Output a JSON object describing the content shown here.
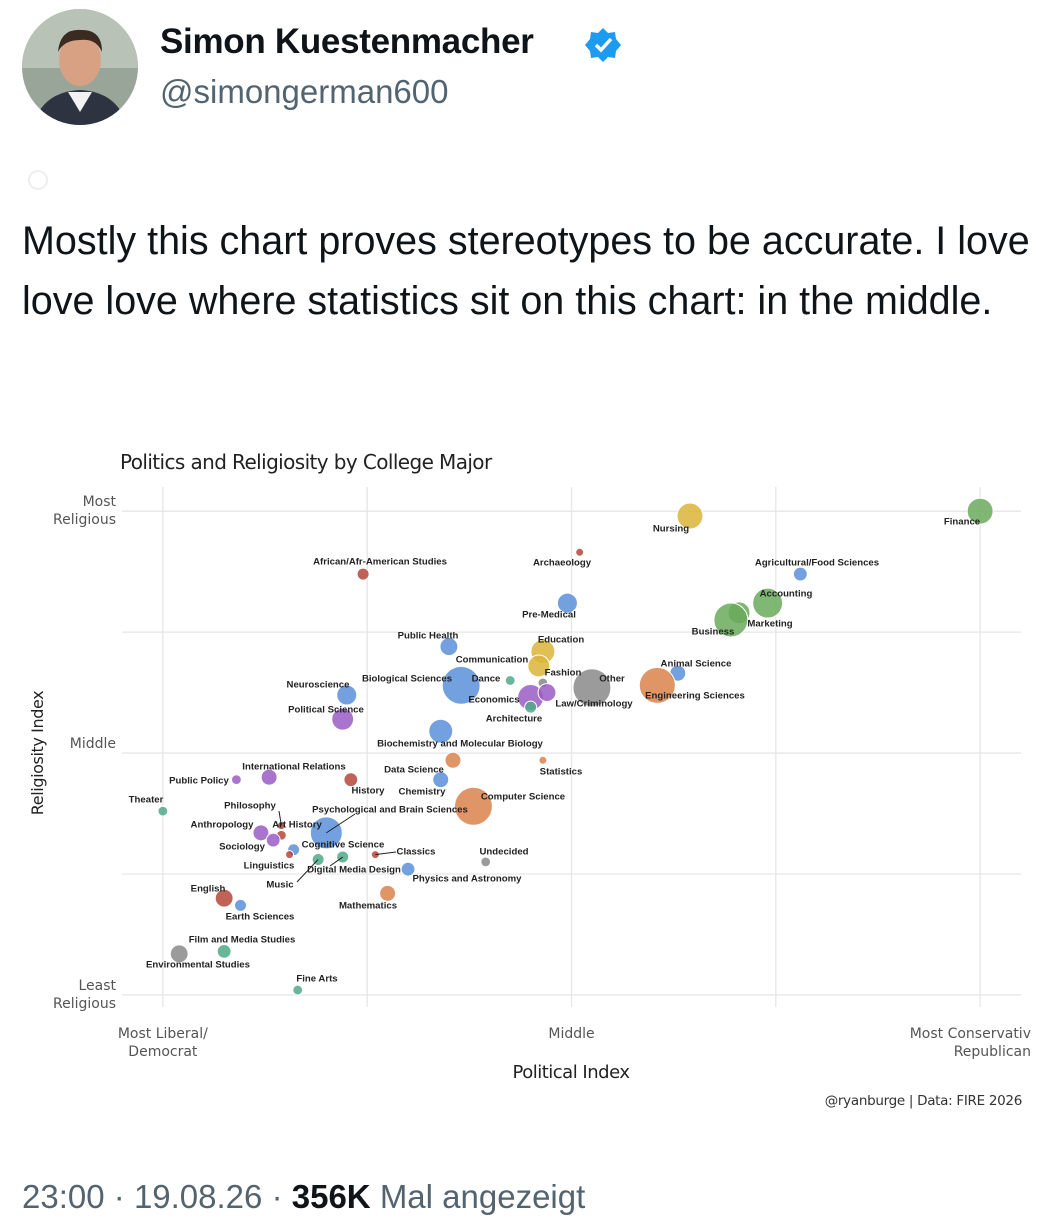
{
  "tweet": {
    "name": "Simon Kuestenmacher",
    "handle": "@simongerman600",
    "text": "Mostly this chart proves stereotypes to be accurate. I love love love where statistics sit on this chart: in the middle.",
    "time": "23:00",
    "separator": "·",
    "date": "19.08.26",
    "views": "356K",
    "views_label": "Mal angezeigt"
  },
  "chart_data": {
    "type": "scatter",
    "title": "Politics and Religiosity by College Major",
    "x_label": "Political Index",
    "y_label": "Religiosity Index",
    "credit": "@ryanburge | Data: FIRE 2026",
    "xlim": [
      -1.1,
      1.1
    ],
    "ylim": [
      -1.05,
      1.1
    ],
    "xticks": [
      {
        "value": -1,
        "label": "Most Liberal/\nDemocrat"
      },
      {
        "value": 0,
        "label": "Middle"
      },
      {
        "value": 1,
        "label": "Most Conservativ\nRepublican"
      }
    ],
    "yticks": [
      {
        "value": 1,
        "label": "Most\nReligious"
      },
      {
        "value": 0,
        "label": "Middle"
      },
      {
        "value": -1,
        "label": "Least\nReligious"
      }
    ],
    "xgrid": [
      -1,
      -0.5,
      0,
      0.5,
      1
    ],
    "ygrid": [
      1,
      0.5,
      0,
      -0.5,
      -1
    ],
    "grid": true,
    "labels": [
      "Finance",
      "Nursing",
      "Archaeology",
      "Agricultural/Food Sciences",
      "African/Afr-American Studies",
      "Pre-Medical",
      "Accounting",
      "Marketing",
      "Business",
      "Public Health",
      "Education",
      "Communication",
      "Dance",
      "Fashion",
      "Other",
      "Animal Science",
      "Engineering Sciences",
      "Biological Sciences",
      "Economics",
      "Law/Criminology",
      "Architecture",
      "Neuroscience",
      "Political Science",
      "Biochemistry and Molecular Biology",
      "International Relations",
      "Public Policy",
      "History",
      "Data Science",
      "Chemistry",
      "Statistics",
      "Computer Science",
      "Psychological and Brain Sciences",
      "Theater",
      "Philosophy",
      "Anthropology",
      "Art History",
      "Sociology",
      "Cognitive Science",
      "Classics",
      "Undecided",
      "Linguistics",
      "Music",
      "Digital Media Design",
      "Physics and Astronomy",
      "Mathematics",
      "English",
      "Earth Sciences",
      "Film and Media Studies",
      "Environmental Studies",
      "Fine Arts"
    ],
    "x": [
      1.0,
      0.29,
      0.02,
      0.56,
      -0.51,
      -0.01,
      0.48,
      0.41,
      0.39,
      -0.3,
      -0.07,
      -0.08,
      -0.15,
      -0.07,
      0.05,
      0.26,
      0.21,
      -0.27,
      -0.1,
      -0.06,
      -0.1,
      -0.55,
      -0.56,
      -0.32,
      -0.74,
      -0.82,
      -0.54,
      -0.29,
      -0.32,
      -0.07,
      -0.24,
      -0.6,
      -1.0,
      -0.71,
      -0.76,
      -0.71,
      -0.73,
      -0.68,
      -0.48,
      -0.21,
      -0.69,
      -0.62,
      -0.56,
      -0.4,
      -0.45,
      -0.85,
      -0.81,
      -0.85,
      -0.96,
      -0.67
    ],
    "y": [
      1.0,
      0.98,
      0.83,
      0.74,
      0.74,
      0.62,
      0.62,
      0.58,
      0.55,
      0.44,
      0.42,
      0.36,
      0.3,
      0.29,
      0.27,
      0.33,
      0.28,
      0.28,
      0.23,
      0.25,
      0.19,
      0.24,
      0.14,
      0.09,
      -0.1,
      -0.11,
      -0.11,
      -0.03,
      -0.11,
      -0.03,
      -0.22,
      -0.33,
      -0.24,
      -0.3,
      -0.33,
      -0.34,
      -0.36,
      -0.4,
      -0.42,
      -0.45,
      -0.42,
      -0.44,
      -0.43,
      -0.48,
      -0.58,
      -0.6,
      -0.63,
      -0.82,
      -0.83,
      -0.98
    ],
    "sizes": [
      42,
      42,
      4,
      12,
      9,
      25,
      56,
      30,
      72,
      20,
      36,
      30,
      6,
      6,
      90,
      16,
      81,
      90,
      42,
      20,
      9,
      25,
      30,
      36,
      16,
      6,
      12,
      16,
      16,
      4,
      90,
      64,
      6,
      4,
      16,
      6,
      12,
      9,
      4,
      6,
      4,
      9,
      9,
      12,
      16,
      20,
      9,
      12,
      20,
      6
    ],
    "colors": [
      "#6aaa5c",
      "#dcb43a",
      "#b5473a",
      "#5b8fd9",
      "#b5473a",
      "#5b8fd9",
      "#6aaa5c",
      "#6aaa5c",
      "#6aaa5c",
      "#5b8fd9",
      "#dcb43a",
      "#dcb43a",
      "#4fa987",
      "#8a8a8a",
      "#8a8a8a",
      "#5b8fd9",
      "#d9834a",
      "#5b8fd9",
      "#9a5cc6",
      "#9a5cc6",
      "#4fa987",
      "#5b8fd9",
      "#9a5cc6",
      "#5b8fd9",
      "#9a5cc6",
      "#9a5cc6",
      "#b5473a",
      "#d9834a",
      "#5b8fd9",
      "#d9834a",
      "#d9834a",
      "#5b8fd9",
      "#4fa987",
      "#b5473a",
      "#9a5cc6",
      "#b5473a",
      "#9a5cc6",
      "#5b8fd9",
      "#b5473a",
      "#8a8a8a",
      "#b5473a",
      "#4fa987",
      "#4fa987",
      "#5b8fd9",
      "#d9834a",
      "#b5473a",
      "#5b8fd9",
      "#4fa987",
      "#8a8a8a",
      "#4fa987"
    ]
  }
}
